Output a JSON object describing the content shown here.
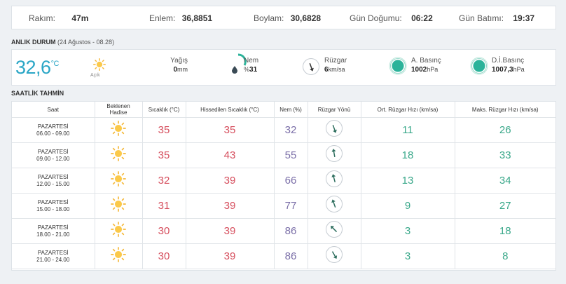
{
  "location_info": {
    "altitude_label": "Rakım:",
    "altitude_value": "47m",
    "latitude_label": "Enlem:",
    "latitude_value": "36,8851",
    "longitude_label": "Boylam:",
    "longitude_value": "30,6828",
    "sunrise_label": "Gün Doğumu:",
    "sunrise_value": "06:22",
    "sunset_label": "Gün Batımı:",
    "sunset_value": "19:37"
  },
  "current": {
    "title": "ANLIK DURUM",
    "subtitle": "(24 Ağustos - 08.28)",
    "temperature": "32,6",
    "temp_unit": "°C",
    "condition_icon": "sun-icon",
    "condition": "Açık",
    "precip_label": "Yağış",
    "precip_value": "0",
    "precip_unit": "mm",
    "humidity_label": "Nem",
    "humidity_prefix": "%",
    "humidity_value": "31",
    "humidity_gauge_fraction": 0.31,
    "wind_label": "Rüzgar",
    "wind_value": "6",
    "wind_unit": "km/sa",
    "pressure_label": "A. Basınç",
    "pressure_value": "1002",
    "pressure_unit": "hPa",
    "sea_pressure_label": "D.İ.Basınç",
    "sea_pressure_value": "1007,3",
    "sea_pressure_unit": "hPa",
    "accent_color": "#2aa6c6",
    "gauge_color": "#2bb39a"
  },
  "hourly": {
    "title": "SAATLİK TAHMİN",
    "headers": {
      "time": "Saat",
      "condition_line1": "Beklenen",
      "condition_line2": "Hadise",
      "temp": "Sıcaklık (°C)",
      "feels": "Hissedilen Sıcaklık (°C)",
      "humidity": "Nem (%)",
      "wind_dir": "Rüzgar Yönü",
      "avg_wind": "Ort. Rüzgar Hızı (km/sa)",
      "max_wind": "Maks. Rüzgar Hızı (km/sa)"
    },
    "rows": [
      {
        "day": "PAZARTESİ",
        "range": "06.00 - 09.00",
        "icon": "sun-icon",
        "temp": "35",
        "feels": "35",
        "humidity": "32",
        "wind_dir_deg": 160,
        "avg_wind": "11",
        "max_wind": "26"
      },
      {
        "day": "PAZARTESİ",
        "range": "09.00 - 12.00",
        "icon": "sun-icon",
        "temp": "35",
        "feels": "43",
        "humidity": "55",
        "wind_dir_deg": 350,
        "avg_wind": "18",
        "max_wind": "33"
      },
      {
        "day": "PAZARTESİ",
        "range": "12.00 - 15.00",
        "icon": "sun-icon",
        "temp": "32",
        "feels": "39",
        "humidity": "66",
        "wind_dir_deg": 345,
        "avg_wind": "13",
        "max_wind": "34"
      },
      {
        "day": "PAZARTESİ",
        "range": "15.00 - 18.00",
        "icon": "sun-icon",
        "temp": "31",
        "feels": "39",
        "humidity": "77",
        "wind_dir_deg": 340,
        "avg_wind": "9",
        "max_wind": "27"
      },
      {
        "day": "PAZARTESİ",
        "range": "18.00 - 21.00",
        "icon": "sun-icon",
        "temp": "30",
        "feels": "39",
        "humidity": "86",
        "wind_dir_deg": 315,
        "avg_wind": "3",
        "max_wind": "18"
      },
      {
        "day": "PAZARTESİ",
        "range": "21.00 - 24.00",
        "icon": "sun-icon",
        "temp": "30",
        "feels": "39",
        "humidity": "86",
        "wind_dir_deg": 150,
        "avg_wind": "3",
        "max_wind": "8"
      }
    ]
  }
}
